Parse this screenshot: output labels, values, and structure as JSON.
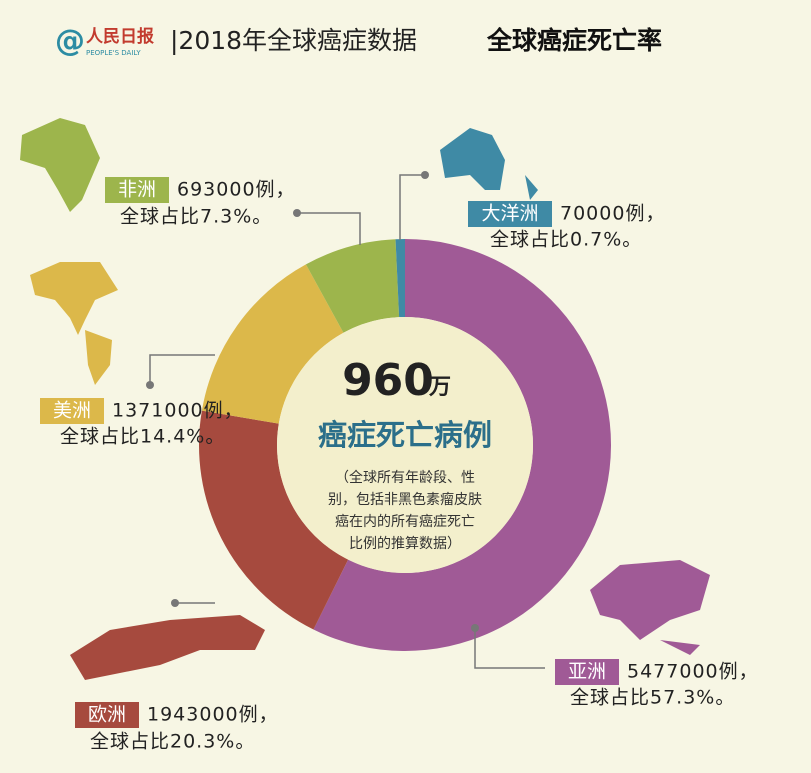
{
  "header": {
    "logo": "@",
    "logo_name": "人民日报",
    "logo_sub": "PEOPLE'S DAILY",
    "title": "|2018年全球癌症数据",
    "subtitle": "全球癌症死亡率"
  },
  "chart_data": {
    "type": "donut",
    "categories": [
      "亚洲",
      "欧洲",
      "美洲",
      "非洲",
      "大洋洲"
    ],
    "values": [
      5477000,
      1943000,
      1371000,
      693000,
      70000
    ],
    "value_labels": [
      "5477000例，",
      "1943000例，",
      "1371000例，",
      "693000例，",
      "70000例，"
    ],
    "shares": [
      57.3,
      20.3,
      14.4,
      7.3,
      0.7
    ],
    "share_labels": [
      "全球占比57.3%。",
      "全球占比20.3%。",
      "全球占比14.4%。",
      "全球占比7.3%。",
      "全球占比0.7%。"
    ],
    "colors": [
      "#a05a96",
      "#a64a3e",
      "#dcb84a",
      "#9db54c",
      "#3f8aa5"
    ],
    "center_value": 960,
    "center_unit": "万",
    "center_label": "癌症死亡病例",
    "center_note": [
      "（全球所有年龄段、性",
      "别，包括非黑色素瘤皮肤",
      "癌在内的所有癌症死亡",
      "比例的推算数据）"
    ]
  }
}
